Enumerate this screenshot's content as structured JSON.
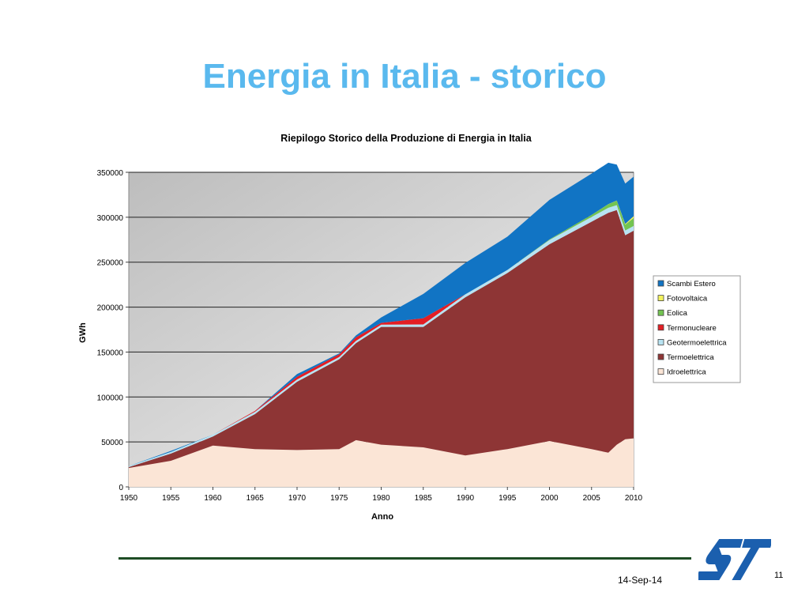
{
  "slide": {
    "title": "Energia in Italia - storico",
    "date": "14-Sep-14",
    "page_number": "11"
  },
  "colors": {
    "title": "#5ab9ee",
    "plot_gradient_dark": "#bdbdbd",
    "plot_gradient_light": "#f5f5f5",
    "footer_rule": "#1e4d24",
    "logo": "#1b5fae"
  },
  "chart_data": {
    "type": "area",
    "stacked": true,
    "title": "Riepilogo Storico della Produzione di Energia in Italia",
    "xlabel": "Anno",
    "ylabel": "GWh",
    "xlim": [
      1950,
      2010
    ],
    "ylim": [
      0,
      350000
    ],
    "x_ticks": [
      "1950",
      "1955",
      "1960",
      "1965",
      "1970",
      "1975",
      "1980",
      "1985",
      "1990",
      "1995",
      "2000",
      "2005",
      "2010"
    ],
    "y_ticks": [
      "0",
      "50000",
      "100000",
      "150000",
      "200000",
      "250000",
      "300000",
      "350000"
    ],
    "grid": true,
    "legend_position": "right",
    "x": [
      1950,
      1955,
      1960,
      1965,
      1970,
      1975,
      1977,
      1980,
      1985,
      1990,
      1995,
      2000,
      2005,
      2007,
      2008,
      2009,
      2010
    ],
    "series": [
      {
        "name": "Idroelettrica",
        "color": "#fbe5d6",
        "values": [
          21000,
          29000,
          46000,
          42000,
          41000,
          42000,
          52000,
          47000,
          44000,
          35000,
          42000,
          51000,
          42000,
          38000,
          47000,
          53000,
          54000
        ]
      },
      {
        "name": "Termoelettrica",
        "color": "#8e3535",
        "values": [
          1000,
          8000,
          10000,
          39000,
          76000,
          100000,
          108000,
          131000,
          134000,
          176000,
          196000,
          219000,
          253000,
          267000,
          261000,
          227000,
          231000
        ]
      },
      {
        "name": "Geotermoelettrica",
        "color": "#b8e3f2",
        "values": [
          1000,
          2000,
          2000,
          2500,
          2500,
          2500,
          2500,
          2500,
          2700,
          3200,
          3400,
          4700,
          5300,
          5500,
          5500,
          5300,
          5300
        ]
      },
      {
        "name": "Termonucleare",
        "color": "#e31e24",
        "values": [
          0,
          0,
          0,
          1000,
          3000,
          3000,
          4000,
          2000,
          7000,
          0,
          0,
          0,
          0,
          0,
          0,
          0,
          0
        ]
      },
      {
        "name": "Eolica",
        "color": "#73c451",
        "values": [
          0,
          0,
          0,
          0,
          0,
          0,
          0,
          0,
          0,
          0,
          0,
          600,
          2300,
          4000,
          4900,
          6500,
          9000
        ]
      },
      {
        "name": "Fotovoltaica",
        "color": "#f2f25e",
        "values": [
          0,
          0,
          0,
          0,
          0,
          0,
          0,
          0,
          0,
          0,
          0,
          0,
          0,
          100,
          200,
          700,
          1900
        ]
      },
      {
        "name": "Scambi Estero",
        "color": "#1174c4",
        "values": [
          0,
          1000,
          0,
          0,
          3000,
          1000,
          2000,
          6000,
          27000,
          35000,
          37000,
          44000,
          46000,
          46000,
          40000,
          45000,
          44000
        ]
      }
    ]
  }
}
